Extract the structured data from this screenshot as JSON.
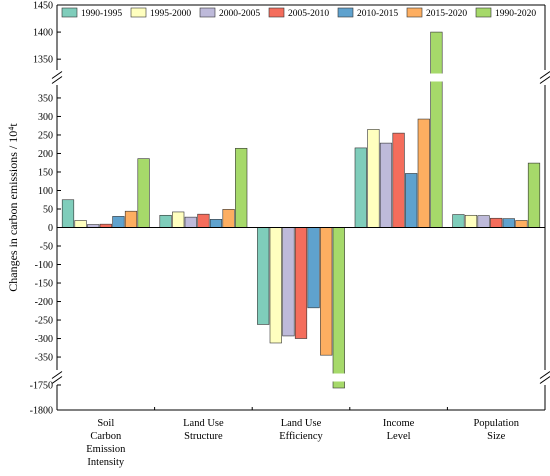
{
  "chart_data": {
    "type": "bar",
    "ylabel": "Changes in carbon emissions / 10⁴t",
    "categories": [
      [
        "Soil",
        "Carbon",
        "Emission",
        "Intensity"
      ],
      [
        "Land Use",
        "Structure"
      ],
      [
        "Land Use",
        "Efficiency"
      ],
      [
        "Income",
        "Level"
      ],
      [
        "Population",
        "Size"
      ]
    ],
    "series": [
      {
        "name": "1990-1995",
        "color": "#7fcdbb",
        "values": [
          75,
          33,
          -262,
          215,
          35
        ]
      },
      {
        "name": "1995-2000",
        "color": "#ffffbf",
        "values": [
          19,
          42,
          -312,
          265,
          33
        ]
      },
      {
        "name": "2000-2005",
        "color": "#bebada",
        "values": [
          8,
          28,
          -293,
          228,
          32
        ]
      },
      {
        "name": "2005-2010",
        "color": "#f46d5c",
        "values": [
          9,
          36,
          -300,
          255,
          25
        ]
      },
      {
        "name": "2010-2015",
        "color": "#5fa2ce",
        "values": [
          30,
          22,
          -217,
          146,
          24
        ]
      },
      {
        "name": "2015-2020",
        "color": "#fdae61",
        "values": [
          44,
          49,
          -345,
          293,
          19
        ]
      },
      {
        "name": "1990-2020",
        "color": "#a6d96a",
        "values": [
          186,
          214,
          -1756,
          1400,
          174
        ]
      }
    ],
    "y_segments": [
      {
        "range": [
          -1800,
          -1750
        ],
        "ticks": [
          -1800,
          -1750
        ]
      },
      {
        "range": [
          -385,
          385
        ],
        "ticks": [
          -350,
          -300,
          -250,
          -200,
          -150,
          -100,
          -50,
          0,
          50,
          100,
          150,
          200,
          250,
          300,
          350
        ]
      },
      {
        "range": [
          1330,
          1450
        ],
        "ticks": [
          1350,
          1400,
          1450
        ]
      }
    ],
    "axis_break_at": [
      [
        -1750,
        -385
      ],
      [
        385,
        1330
      ]
    ],
    "legend_position": "top",
    "grid": false
  }
}
